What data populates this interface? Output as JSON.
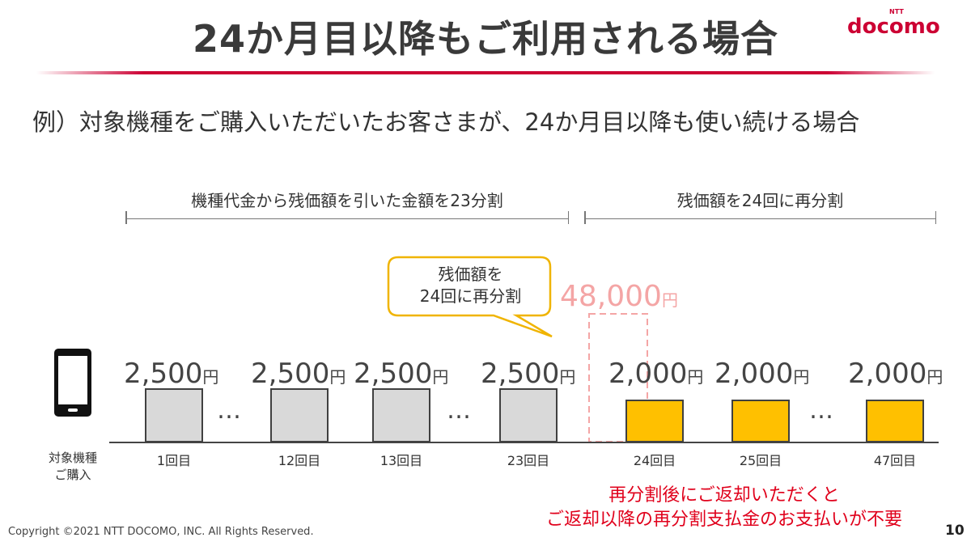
{
  "header": {
    "title": "24か月目以降もご利用される場合",
    "logo": {
      "small": "NTT",
      "word": "docomo",
      "color": "#cc0033"
    }
  },
  "subtitle": "例）対象機種をご購入いただいたお客さまが、24か月目以降も使い続ける場合",
  "ranges": {
    "first": "機種代金から残価額を引いた金額を23分割",
    "second": "残価額を24回に再分割"
  },
  "callout": {
    "line1": "残価額を",
    "line2": "24回に再分割",
    "border_color": "#f0b400"
  },
  "residual": {
    "value": "48,000",
    "unit": "円",
    "color": "#f4a5a5"
  },
  "device": {
    "icon": "smartphone-icon",
    "caption_line1": "対象機種",
    "caption_line2": "ご購入"
  },
  "payments": [
    {
      "amount": "2,500",
      "unit": "円",
      "label": "1回目",
      "type": "standard"
    },
    {
      "amount": "2,500",
      "unit": "円",
      "label": "12回目",
      "type": "standard"
    },
    {
      "amount": "2,500",
      "unit": "円",
      "label": "13回目",
      "type": "standard"
    },
    {
      "amount": "2,500",
      "unit": "円",
      "label": "23回目",
      "type": "standard"
    },
    {
      "amount": "2,000",
      "unit": "円",
      "label": "24回目",
      "type": "redivided"
    },
    {
      "amount": "2,000",
      "unit": "円",
      "label": "25回目",
      "type": "redivided"
    },
    {
      "amount": "2,000",
      "unit": "円",
      "label": "47回目",
      "type": "redivided"
    }
  ],
  "ellipsis": "…",
  "note": {
    "line1": "再分割後にご返却いただくと",
    "line2": "ご返却以降の再分割支払金のお支払いが不要",
    "color": "#e0001b"
  },
  "footer": {
    "copyright": "Copyright ©2021 NTT DOCOMO, INC. All Rights Reserved.",
    "page_number": "10"
  },
  "colors": {
    "standard_bar": "#d9d9d9",
    "redivided_bar": "#ffc000"
  }
}
